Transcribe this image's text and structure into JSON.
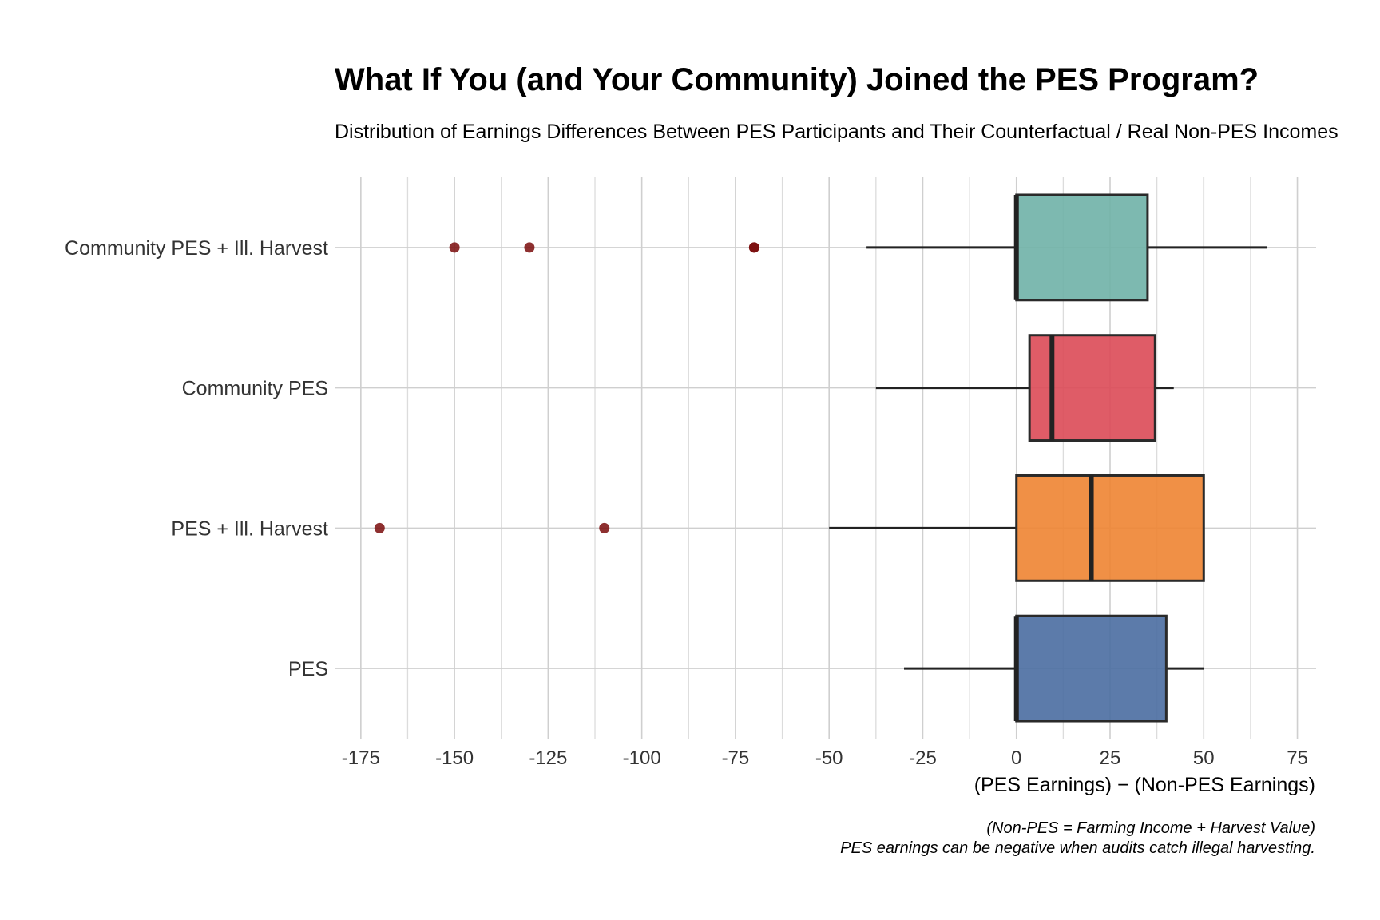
{
  "chart_data": {
    "type": "boxplot",
    "title": "What If You (and Your Community) Joined the PES Program?",
    "subtitle": "Distribution of Earnings Differences Between PES Participants and Their Counterfactual / Real Non-PES Incomes",
    "xlabel": "(PES Earnings) − (Non-PES Earnings)",
    "ylabel": "",
    "caption": [
      "(Non-PES = Farming Income + Harvest Value)",
      "PES earnings can be negative when audits catch illegal harvesting."
    ],
    "xlim": [
      -182,
      80
    ],
    "xticks": [
      -175,
      -150,
      -125,
      -100,
      -75,
      -50,
      -25,
      0,
      25,
      50,
      75
    ],
    "xtick_labels": [
      "-175",
      "-150",
      "-125",
      "-100",
      "-75",
      "-50",
      "-25",
      "0",
      "25",
      "50",
      "75"
    ],
    "grid": true,
    "categories": [
      "Community PES + Ill. Harvest",
      "Community PES",
      "PES + Ill. Harvest",
      "PES"
    ],
    "series": [
      {
        "name": "Community PES + Ill. Harvest",
        "color": "#6fb1a7",
        "whisker_low": -40,
        "q1": 0,
        "median": 0,
        "q3": 35,
        "whisker_high": 67,
        "outliers": [
          -150,
          -130,
          -70,
          -70
        ]
      },
      {
        "name": "Community PES",
        "color": "#dc4a57",
        "whisker_low": -37.5,
        "q1": 3.5,
        "median": 9.5,
        "q3": 37,
        "whisker_high": 42,
        "outliers": []
      },
      {
        "name": "PES + Ill. Harvest",
        "color": "#ee8432",
        "whisker_low": -50,
        "q1": 0,
        "median": 20,
        "q3": 50,
        "whisker_high": 50,
        "outliers": [
          -170,
          -110
        ]
      },
      {
        "name": "PES",
        "color": "#4a6da1",
        "whisker_low": -30,
        "q1": 0,
        "median": 0,
        "q3": 40,
        "whisker_high": 50,
        "outliers": []
      }
    ],
    "outlier_color": "#7a0c0c"
  }
}
